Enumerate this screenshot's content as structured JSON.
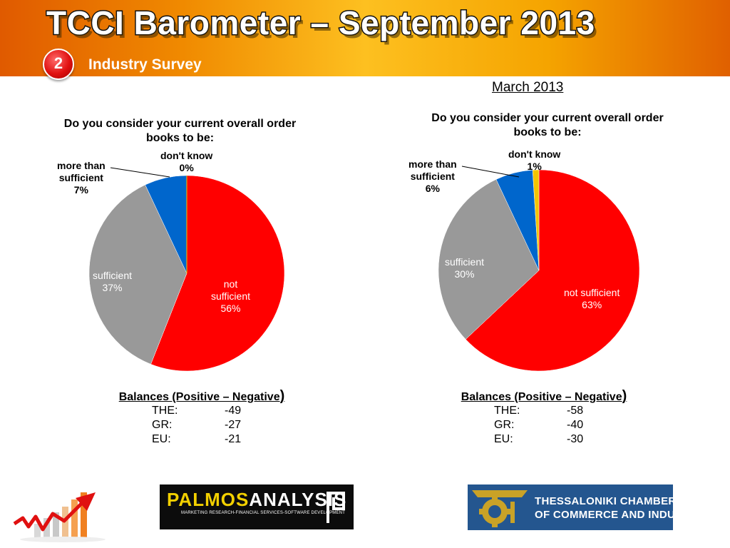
{
  "header": {
    "title": "TCCI Barometer – September 2013",
    "section_number": "2",
    "section_title": "Industry Survey"
  },
  "colors": {
    "not_sufficient": "#ff0000",
    "sufficient": "#999999",
    "more_than_sufficient": "#0066cc",
    "dont_know": "#f5c400"
  },
  "chart_data": [
    {
      "type": "pie",
      "title": "Do you consider your current overall order books to be:",
      "slices": [
        {
          "name": "not sufficient",
          "label_lines": [
            "not",
            "sufficient",
            "56%"
          ],
          "value": 56,
          "color": "#ff0000"
        },
        {
          "name": "sufficient",
          "label_lines": [
            "sufficient",
            "37%"
          ],
          "value": 37,
          "color": "#999999"
        },
        {
          "name": "more than sufficient",
          "label_lines": [
            "more than",
            "sufficient",
            "7%"
          ],
          "value": 7,
          "color": "#0066cc"
        },
        {
          "name": "don't know",
          "label_lines": [
            "don't know",
            "0%"
          ],
          "value": 0,
          "color": "#f5c400"
        }
      ]
    },
    {
      "type": "pie",
      "subtitle": "March 2013",
      "title": "Do you consider your current overall order books to be:",
      "slices": [
        {
          "name": "not sufficient",
          "label_lines": [
            "not sufficient",
            "63%"
          ],
          "value": 63,
          "color": "#ff0000"
        },
        {
          "name": "sufficient",
          "label_lines": [
            "sufficient",
            "30%"
          ],
          "value": 30,
          "color": "#999999"
        },
        {
          "name": "more than sufficient",
          "label_lines": [
            "more than",
            "sufficient",
            "6%"
          ],
          "value": 6,
          "color": "#0066cc"
        },
        {
          "name": "don't know",
          "label_lines": [
            "don't know",
            "1%"
          ],
          "value": 1,
          "color": "#f5c400"
        }
      ]
    }
  ],
  "balances": [
    {
      "title": "Balances (Positive – Negative",
      "title_paren": ")",
      "rows": [
        {
          "region": "THE:",
          "value": "-49"
        },
        {
          "region": "GR:",
          "value": "-27"
        },
        {
          "region": "EU:",
          "value": "-21"
        }
      ]
    },
    {
      "title": "Balances (Positive – Negative",
      "title_paren": ")",
      "rows": [
        {
          "region": "THE:",
          "value": "-58"
        },
        {
          "region": "GR:",
          "value": "-40"
        },
        {
          "region": "EU:",
          "value": "-30"
        }
      ]
    }
  ],
  "logos": {
    "palmos_name_a": "PALMOS",
    "palmos_name_b": "ANALYSIS",
    "palmos_tagline": "MARKETING RESEARCH-FINANCIAL SERVICES-SOFTWARE DEVELOPMENT",
    "tcci_line1": "THESSALONIKI CHAMBER",
    "tcci_line2": "OF COMMERCE AND INDUSTRY",
    "growth_icon": "growth-arrow-chart-icon",
    "tcci_icon": "tcci-gear-emblem-icon"
  }
}
